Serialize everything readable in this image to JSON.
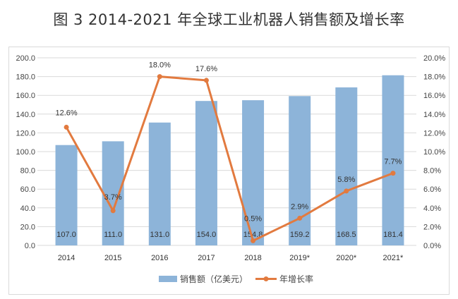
{
  "chart_data": {
    "type": "bar+line",
    "title": "图 3 2014-2021 年全球工业机器人销售额及增长率",
    "categories": [
      "2014",
      "2015",
      "2016",
      "2017",
      "2018",
      "2019*",
      "2020*",
      "2021*"
    ],
    "series": [
      {
        "name": "销售额（亿美元）",
        "type": "bar",
        "axis": "left",
        "color": "#8db4d9",
        "values": [
          107.0,
          111.0,
          131.0,
          154.0,
          154.8,
          159.2,
          168.5,
          181.4
        ],
        "labels": [
          "107.0",
          "111.0",
          "131.0",
          "154.0",
          "154.8",
          "159.2",
          "168.5",
          "181.4"
        ]
      },
      {
        "name": "年增长率",
        "type": "line",
        "axis": "right",
        "color": "#e27a3f",
        "values": [
          12.6,
          3.7,
          18.0,
          17.6,
          0.5,
          2.9,
          5.8,
          7.7
        ],
        "labels": [
          "12.6%",
          "3.7%",
          "18.0%",
          "17.6%",
          "0.5%",
          "2.9%",
          "5.8%",
          "7.7%"
        ]
      }
    ],
    "y_left": {
      "range": [
        0,
        200
      ],
      "ticks": [
        "0.0",
        "20.0",
        "40.0",
        "60.0",
        "80.0",
        "100.0",
        "120.0",
        "140.0",
        "160.0",
        "180.0",
        "200.0"
      ]
    },
    "y_right": {
      "range": [
        0,
        20
      ],
      "ticks": [
        "0.0%",
        "2.0%",
        "4.0%",
        "6.0%",
        "8.0%",
        "10.0%",
        "12.0%",
        "14.0%",
        "16.0%",
        "18.0%",
        "20.0%"
      ]
    },
    "grid": true,
    "legend": "bottom"
  }
}
